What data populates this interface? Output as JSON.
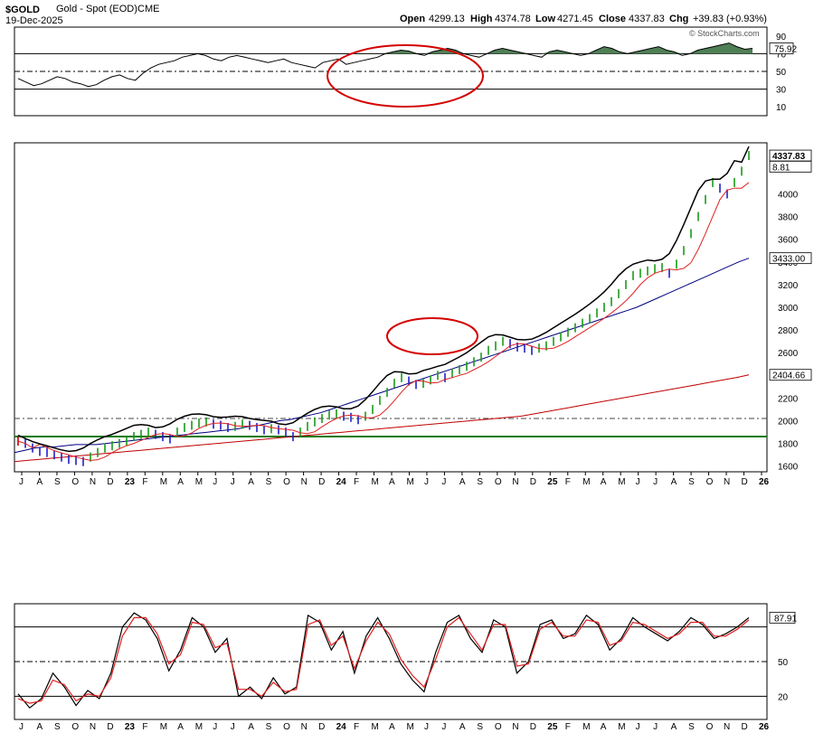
{
  "header": {
    "symbol": "$GOLD",
    "name": "Gold - Spot (EOD)",
    "exchange": "CME",
    "date": "19-Dec-2025",
    "open_label": "Open",
    "open": "4299.13",
    "high_label": "High",
    "high": "4374.78",
    "low_label": "Low",
    "low": "4271.45",
    "close_label": "Close",
    "close": "4337.83",
    "chg_label": "Chg",
    "chg": "+39.83 (+0.93%)",
    "brand": "© StockCharts.com"
  },
  "chart_data": [
    {
      "type": "line",
      "panel": "rsi",
      "ylim": [
        0,
        100
      ],
      "y_ticks": [
        "90",
        "70",
        "50",
        "30",
        "10"
      ],
      "current_value_label": "75.92",
      "reference_lines": [
        70,
        50,
        30
      ],
      "series": [
        {
          "values": [
            42,
            38,
            34,
            36,
            40,
            44,
            42,
            38,
            36,
            33,
            35,
            40,
            44,
            46,
            42,
            40,
            48,
            54,
            58,
            60,
            62,
            66,
            68,
            70,
            68,
            64,
            62,
            66,
            68,
            66,
            64,
            62,
            60,
            62,
            64,
            60,
            58,
            56,
            54,
            60,
            62,
            64,
            58,
            60,
            62,
            64,
            66,
            70,
            72,
            74,
            73,
            70,
            68,
            72,
            74,
            76,
            74,
            70,
            68,
            66,
            70,
            74,
            76,
            74,
            72,
            70,
            68,
            66,
            72,
            74,
            72,
            70,
            68,
            70,
            74,
            78,
            76,
            72,
            70,
            72,
            74,
            76,
            78,
            74,
            72,
            68,
            70,
            74,
            76,
            78,
            80,
            82,
            78,
            75,
            76
          ]
        }
      ]
    },
    {
      "type": "bar",
      "panel": "price",
      "ylim": [
        1550,
        4450
      ],
      "y_ticks": [
        "4000",
        "3800",
        "3600",
        "3400",
        "3200",
        "3000",
        "2800",
        "2600",
        "2400",
        "2200",
        "2000",
        "1800",
        "1600"
      ],
      "x_ticks": [
        "J",
        "A",
        "S",
        "O",
        "N",
        "D",
        "23",
        "F",
        "M",
        "A",
        "M",
        "J",
        "J",
        "A",
        "S",
        "O",
        "N",
        "D",
        "24",
        "F",
        "M",
        "A",
        "M",
        "J",
        "J",
        "A",
        "S",
        "O",
        "N",
        "D",
        "25",
        "F",
        "M",
        "A",
        "M",
        "J",
        "J",
        "A",
        "S",
        "O",
        "N",
        "D",
        "26"
      ],
      "value_labels": [
        "4337.83",
        "3433.00",
        "2404.66",
        "8.81"
      ],
      "series": [
        {
          "values": [
            1820,
            1800,
            1760,
            1730,
            1720,
            1700,
            1680,
            1660,
            1650,
            1640,
            1680,
            1720,
            1760,
            1780,
            1800,
            1820,
            1860,
            1880,
            1900,
            1880,
            1860,
            1840,
            1900,
            1940,
            1960,
            1980,
            1990,
            1970,
            1960,
            1940,
            1950,
            1970,
            1960,
            1940,
            1920,
            1930,
            1920,
            1900,
            1860,
            1900,
            1950,
            1990,
            2020,
            2050,
            2060,
            2040,
            2030,
            2010,
            2040,
            2100,
            2180,
            2250,
            2330,
            2380,
            2350,
            2320,
            2330,
            2360,
            2400,
            2380,
            2420,
            2450,
            2480,
            2520,
            2560,
            2620,
            2660,
            2700,
            2680,
            2650,
            2640,
            2620,
            2640,
            2660,
            2700,
            2740,
            2780,
            2820,
            2860,
            2900,
            2950,
            3000,
            3050,
            3120,
            3200,
            3280,
            3300,
            3320,
            3340,
            3350,
            3300,
            3380,
            3500,
            3650,
            3800,
            3950,
            4100,
            4050,
            4000,
            4100,
            4200,
            4337.83
          ]
        },
        {
          "values": [
            1720,
            1740,
            1760,
            1770,
            1770,
            1780,
            1790,
            1790,
            1790,
            1800,
            1810,
            1820,
            1830,
            1840,
            1850,
            1860,
            1870,
            1880,
            1890,
            1900,
            1910,
            1920,
            1930,
            1950,
            1960,
            1980,
            2000,
            2010,
            2030,
            2050,
            2070,
            2100,
            2130,
            2160,
            2190,
            2220,
            2250,
            2280,
            2310,
            2340,
            2370,
            2400,
            2430,
            2460,
            2490,
            2520,
            2550,
            2580,
            2610,
            2640,
            2670,
            2700,
            2730,
            2760,
            2790,
            2820,
            2850,
            2880,
            2910,
            2940,
            2970,
            3000,
            3040,
            3080,
            3120,
            3160,
            3200,
            3240,
            3280,
            3320,
            3360,
            3400,
            3433
          ]
        },
        {
          "values": [
            1640,
            1650,
            1660,
            1670,
            1680,
            1690,
            1700,
            1710,
            1720,
            1730,
            1740,
            1750,
            1760,
            1770,
            1780,
            1790,
            1800,
            1810,
            1820,
            1830,
            1840,
            1850,
            1860,
            1870,
            1880,
            1890,
            1900,
            1910,
            1920,
            1930,
            1940,
            1950,
            1960,
            1970,
            1980,
            1990,
            2000,
            2010,
            2020,
            2030,
            2040,
            2060,
            2080,
            2100,
            2120,
            2140,
            2160,
            2180,
            2200,
            2220,
            2240,
            2260,
            2280,
            2300,
            2320,
            2340,
            2360,
            2380,
            2404.66
          ]
        }
      ]
    },
    {
      "type": "line",
      "panel": "stochastic",
      "ylim": [
        0,
        100
      ],
      "y_ticks": [
        "50",
        "20"
      ],
      "current_value_label": "87.91",
      "reference_lines": [
        80,
        50,
        20
      ],
      "series": [
        {
          "values": [
            22,
            10,
            18,
            40,
            28,
            12,
            25,
            18,
            40,
            80,
            92,
            86,
            70,
            42,
            60,
            88,
            80,
            58,
            70,
            20,
            28,
            18,
            36,
            22,
            28,
            90,
            84,
            60,
            76,
            40,
            72,
            88,
            70,
            48,
            34,
            24,
            58,
            84,
            90,
            70,
            58,
            86,
            80,
            40,
            50,
            82,
            86,
            70,
            74,
            90,
            82,
            60,
            70,
            88,
            80,
            74,
            68,
            76,
            88,
            82,
            70,
            74,
            80,
            88
          ]
        },
        {
          "values": [
            18,
            14,
            16,
            34,
            30,
            16,
            22,
            20,
            36,
            72,
            88,
            88,
            74,
            48,
            56,
            84,
            82,
            62,
            66,
            26,
            26,
            20,
            32,
            24,
            26,
            82,
            86,
            64,
            72,
            44,
            68,
            84,
            74,
            52,
            38,
            28,
            52,
            80,
            88,
            74,
            60,
            82,
            82,
            46,
            48,
            78,
            84,
            72,
            72,
            86,
            84,
            64,
            68,
            84,
            82,
            76,
            70,
            74,
            84,
            84,
            72,
            72,
            78,
            86
          ]
        }
      ]
    }
  ]
}
